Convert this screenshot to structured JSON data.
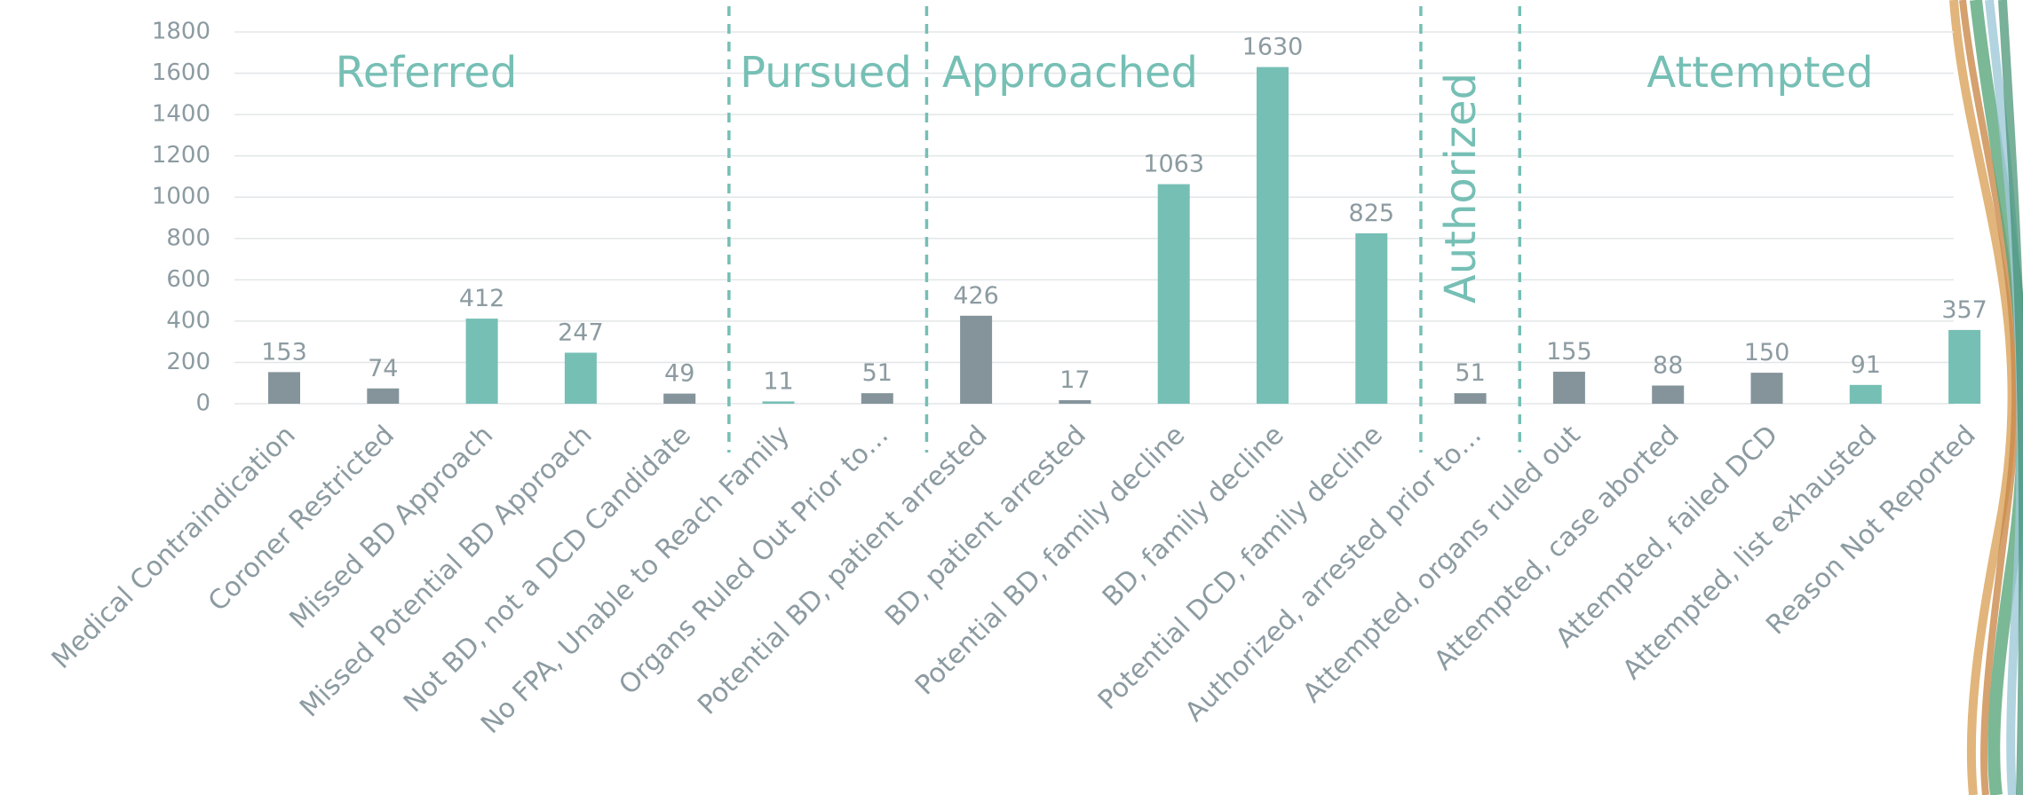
{
  "chart_data": {
    "type": "bar",
    "categories": [
      "Medical Contraindication",
      "Coroner Restricted",
      "Missed BD Approach",
      "Missed Potential BD Approach",
      "Not BD, not a DCD Candidate",
      "No FPA, Unable to Reach Family",
      "Organs Ruled Out Prior to…",
      "Potential BD, patient arrested",
      "BD, patient arrested",
      "Potential BD, family decline",
      "BD, family decline",
      "Potential DCD, family decline",
      "Authorized, arrested prior to…",
      "Attempted, organs ruled out",
      "Attempted, case aborted",
      "Attempted, failed DCD",
      "Attempted, list exhausted",
      "Reason Not Reported"
    ],
    "values": [
      153,
      74,
      412,
      247,
      49,
      11,
      51,
      426,
      17,
      1063,
      1630,
      825,
      51,
      155,
      88,
      150,
      91,
      357
    ],
    "colors": [
      "#85949b",
      "#85949b",
      "#76bfb5",
      "#76bfb5",
      "#85949b",
      "#76bfb5",
      "#85949b",
      "#85949b",
      "#85949b",
      "#76bfb5",
      "#76bfb5",
      "#76bfb5",
      "#85949b",
      "#85949b",
      "#85949b",
      "#85949b",
      "#76bfb5",
      "#76bfb5"
    ],
    "ylim": [
      0,
      1800
    ],
    "yticks": [
      0,
      200,
      400,
      600,
      800,
      1000,
      1200,
      1400,
      1600,
      1800
    ],
    "grid": true,
    "annotations": [
      "Referred",
      "Pursued",
      "Approached",
      "Authorized",
      "Attempted"
    ]
  }
}
